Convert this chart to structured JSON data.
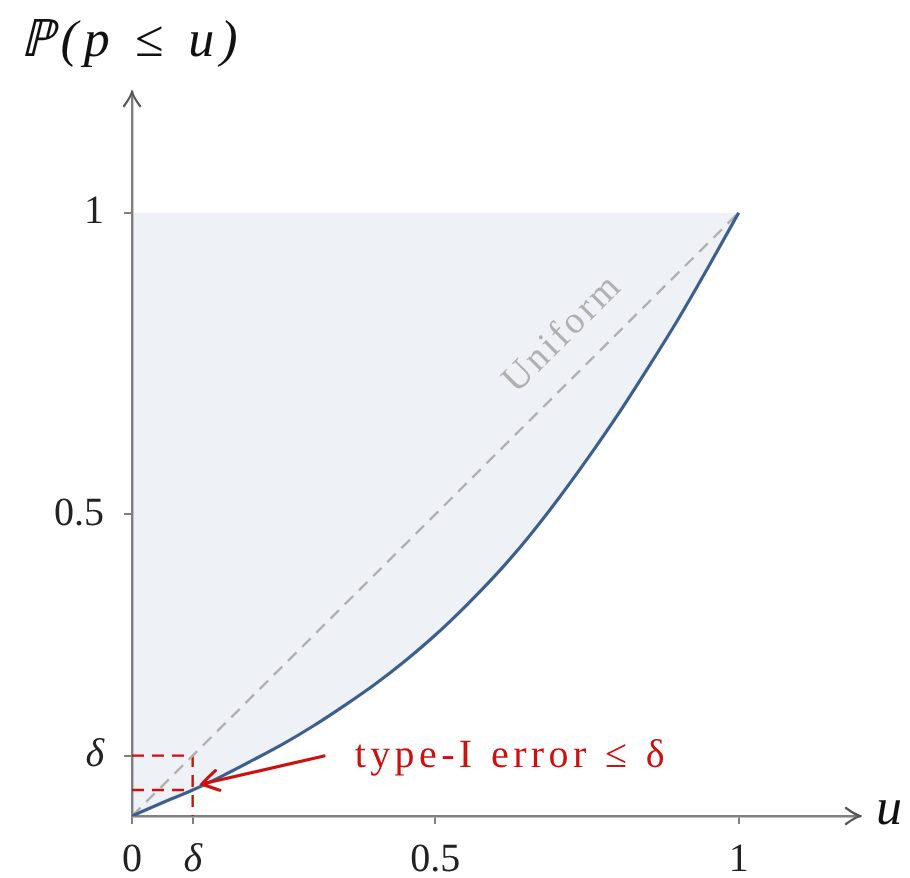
{
  "chart_data": {
    "type": "line",
    "xlabel": "u",
    "ylabel": "ℙ(p ≤ u)",
    "xlim": [
      0,
      1.2
    ],
    "ylim": [
      0,
      1.2
    ],
    "xticks": [
      0,
      {
        "value": 0.1,
        "label": "δ"
      },
      0.5,
      1
    ],
    "yticks": [
      {
        "value": 0.1,
        "label": "δ"
      },
      0.5,
      1
    ],
    "grid": false,
    "legend": false,
    "marker": "none",
    "series": [
      {
        "color": "#3d5f8c",
        "x": [
          0,
          0.05,
          0.1,
          0.15,
          0.2,
          0.25,
          0.3,
          0.35,
          0.4,
          0.45,
          0.5,
          0.55,
          0.6,
          0.65,
          0.7,
          0.75,
          0.8,
          0.85,
          0.9,
          0.95,
          1
        ],
        "values": [
          0,
          0.022,
          0.043,
          0.067,
          0.093,
          0.12,
          0.15,
          0.183,
          0.218,
          0.257,
          0.3,
          0.348,
          0.4,
          0.458,
          0.522,
          0.591,
          0.664,
          0.742,
          0.823,
          0.91,
          1
        ],
        "lower": [
          0,
          0.022,
          0.043,
          0.067,
          0.093,
          0.12,
          0.15,
          0.183,
          0.218,
          0.257,
          0.3,
          0.348,
          0.4,
          0.458,
          0.522,
          0.591,
          0.664,
          0.742,
          0.823,
          0.91,
          1
        ],
        "upper": [
          1,
          1,
          1,
          1,
          1,
          1,
          1,
          1,
          1,
          1,
          1,
          1,
          1,
          1,
          1,
          1,
          1,
          1,
          1,
          1,
          1
        ]
      },
      {
        "name": "Uniform",
        "color": "#b0b0b0",
        "x": [
          0,
          1
        ],
        "values": [
          0,
          1
        ],
        "line_style": "dashed"
      },
      {
        "color": "#cc1111",
        "x": [
          0,
          0.1,
          0.1
        ],
        "values": [
          0.1,
          0.1,
          0
        ],
        "line_style": "dashed"
      },
      {
        "color": "#cc1111",
        "x": [
          0,
          0.1
        ],
        "values": [
          0.043,
          0.043
        ],
        "line_style": "dashed"
      }
    ],
    "annotations": [
      {
        "text": "type-I error ≤ δ",
        "x": 0.1,
        "y": 0.043
      }
    ]
  }
}
